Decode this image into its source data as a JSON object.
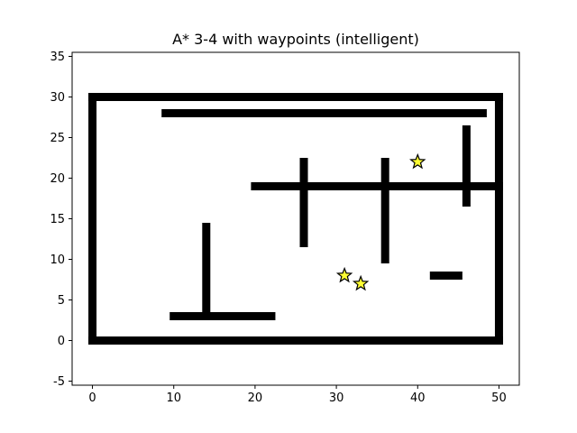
{
  "chart_data": {
    "type": "scatter",
    "title": "A* 3-4 with waypoints (intelligent)",
    "xlabel": "",
    "ylabel": "",
    "xlim": [
      -2.5,
      52.5
    ],
    "ylim": [
      -5.5,
      35.5
    ],
    "xticks": [
      0,
      10,
      20,
      30,
      40,
      50
    ],
    "yticks": [
      -5,
      0,
      5,
      10,
      15,
      20,
      25,
      30,
      35
    ],
    "grid": false,
    "obstacle_color": "#000000",
    "waypoint_color": "#ffff33",
    "obstacles": [
      {
        "name": "outer-bottom",
        "x1": 0,
        "y1": 0,
        "x2": 50,
        "y2": 0
      },
      {
        "name": "outer-top",
        "x1": 0,
        "y1": 30,
        "x2": 50,
        "y2": 30
      },
      {
        "name": "outer-left",
        "x1": 0,
        "y1": 0,
        "x2": 0,
        "y2": 30
      },
      {
        "name": "outer-right",
        "x1": 50,
        "y1": 0,
        "x2": 50,
        "y2": 30
      },
      {
        "name": "top-inner-horizontal",
        "x1": 9,
        "y1": 28,
        "x2": 48,
        "y2": 28
      },
      {
        "name": "middle-horizontal",
        "x1": 20,
        "y1": 19,
        "x2": 50,
        "y2": 19
      },
      {
        "name": "bottom-horizontal",
        "x1": 10,
        "y1": 3,
        "x2": 22,
        "y2": 3
      },
      {
        "name": "left-vertical",
        "x1": 14,
        "y1": 3,
        "x2": 14,
        "y2": 14
      },
      {
        "name": "vertical-26",
        "x1": 26,
        "y1": 12,
        "x2": 26,
        "y2": 22
      },
      {
        "name": "vertical-36",
        "x1": 36,
        "y1": 10,
        "x2": 36,
        "y2": 22
      },
      {
        "name": "vertical-46",
        "x1": 46,
        "y1": 17,
        "x2": 46,
        "y2": 26
      },
      {
        "name": "small-horizontal",
        "x1": 42,
        "y1": 8,
        "x2": 45,
        "y2": 8
      }
    ],
    "waypoints": [
      {
        "x": 40,
        "y": 22
      },
      {
        "x": 31,
        "y": 8
      },
      {
        "x": 33,
        "y": 7
      }
    ]
  }
}
